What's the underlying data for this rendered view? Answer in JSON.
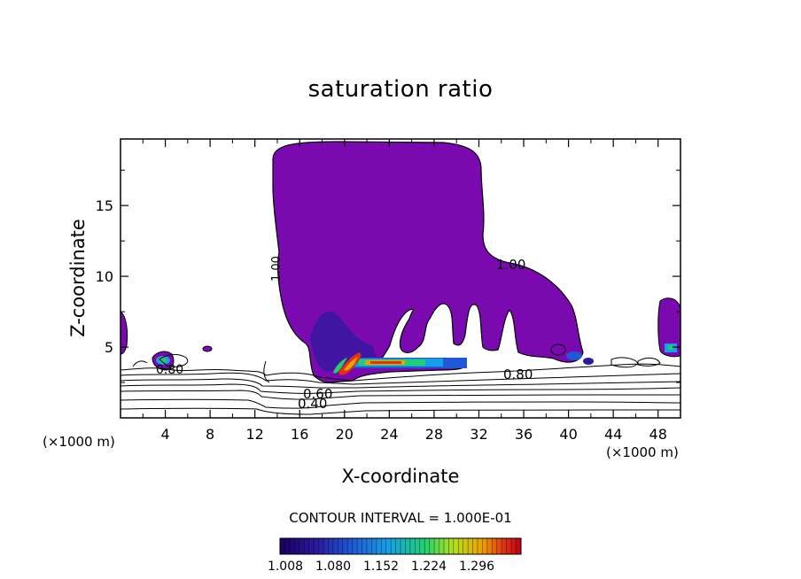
{
  "chart_data": {
    "type": "contour",
    "title": "saturation ratio",
    "xlabel": "X-coordinate",
    "ylabel": "Z-coordinate",
    "x_unit_label": "(×1000 m)",
    "x_ticks": [
      4,
      8,
      12,
      16,
      20,
      24,
      28,
      32,
      36,
      40,
      44,
      48
    ],
    "y_ticks": [
      5,
      10,
      15
    ],
    "xlim": [
      0,
      50
    ],
    "ylim": [
      0,
      19.7
    ],
    "contour_interval_text": "CONTOUR INTERVAL = 1.000E-01",
    "contour_labels": [
      "1.00",
      "0.80",
      "0.60",
      "0.40"
    ],
    "colorbar_ticks": [
      "1.008",
      "1.080",
      "1.152",
      "1.224",
      "1.296"
    ],
    "colorbar_colors": [
      "#1a0060",
      "#2a1aa0",
      "#1e5ad8",
      "#18a0e6",
      "#20d070",
      "#b4e020",
      "#f0a000",
      "#e03010",
      "#c00018"
    ],
    "fill_color": "#7a0ab0",
    "grid": false
  }
}
